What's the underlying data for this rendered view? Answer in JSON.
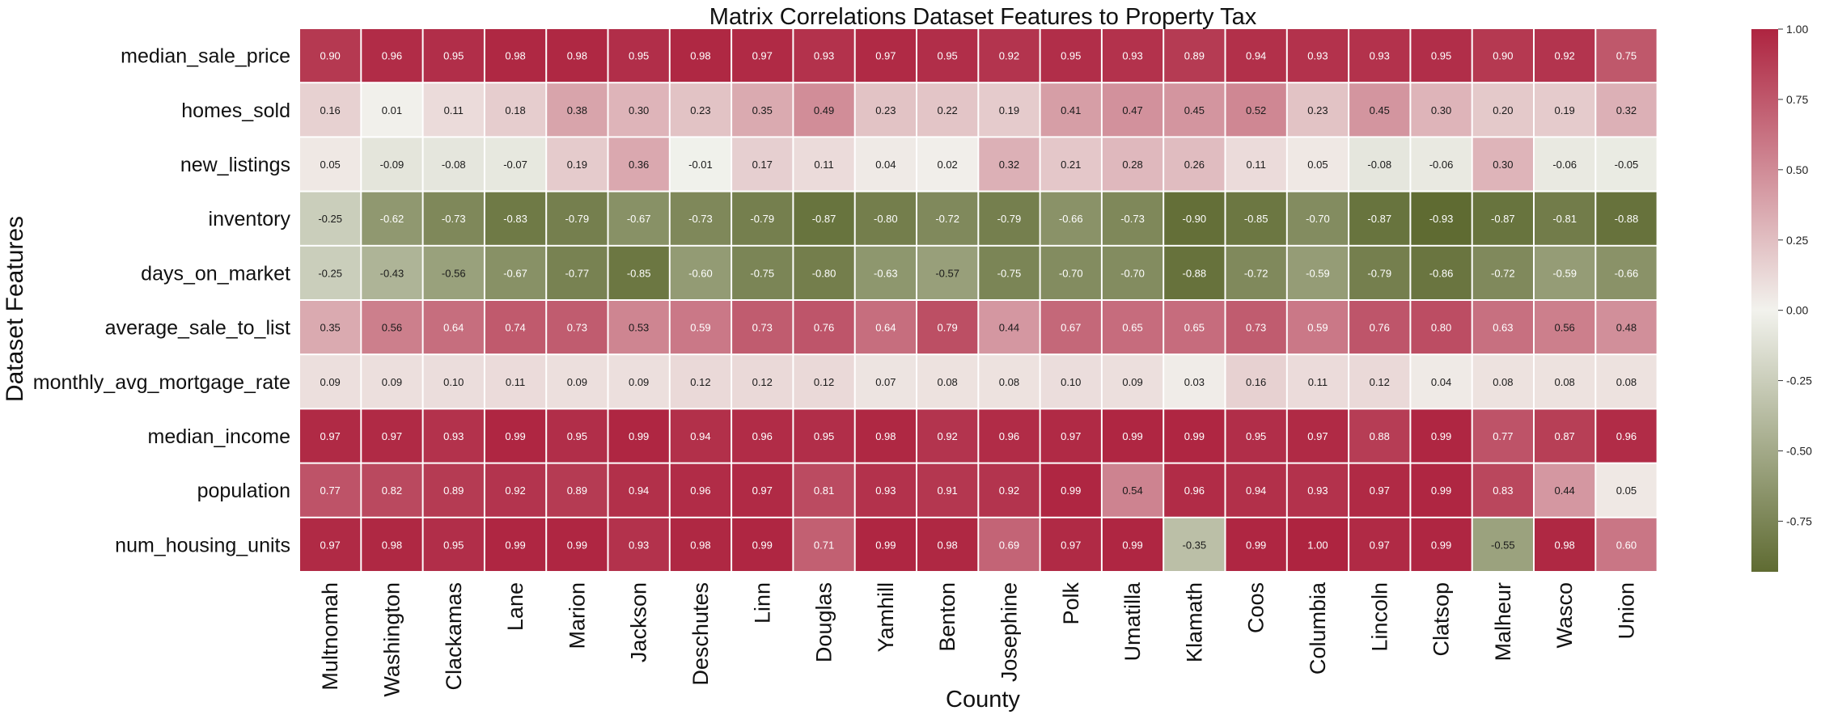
{
  "chart_data": {
    "type": "heatmap",
    "title": "Matrix Correlations Dataset Features to Property Tax",
    "xlabel": "County",
    "ylabel": "Dataset Features",
    "columns": [
      "Multnomah",
      "Washington",
      "Clackamas",
      "Lane",
      "Marion",
      "Jackson",
      "Deschutes",
      "Linn",
      "Douglas",
      "Yamhill",
      "Benton",
      "Josephine",
      "Polk",
      "Umatilla",
      "Klamath",
      "Coos",
      "Columbia",
      "Lincoln",
      "Clatsop",
      "Malheur",
      "Wasco",
      "Union"
    ],
    "rows": [
      "median_sale_price",
      "homes_sold",
      "new_listings",
      "inventory",
      "days_on_market",
      "average_sale_to_list",
      "monthly_avg_mortgage_rate",
      "median_income",
      "population",
      "num_housing_units"
    ],
    "values": [
      [
        0.9,
        0.96,
        0.95,
        0.98,
        0.98,
        0.95,
        0.98,
        0.97,
        0.93,
        0.97,
        0.95,
        0.92,
        0.95,
        0.93,
        0.89,
        0.94,
        0.93,
        0.93,
        0.95,
        0.9,
        0.92,
        0.75
      ],
      [
        0.16,
        0.01,
        0.11,
        0.18,
        0.38,
        0.3,
        0.23,
        0.35,
        0.49,
        0.23,
        0.22,
        0.19,
        0.41,
        0.47,
        0.45,
        0.52,
        0.23,
        0.45,
        0.3,
        0.2,
        0.19,
        0.32
      ],
      [
        0.05,
        -0.09,
        -0.08,
        -0.07,
        0.19,
        0.36,
        -0.01,
        0.17,
        0.11,
        0.04,
        0.02,
        0.32,
        0.21,
        0.28,
        0.26,
        0.11,
        0.05,
        -0.08,
        -0.06,
        0.3,
        -0.06,
        -0.05
      ],
      [
        -0.25,
        -0.62,
        -0.73,
        -0.83,
        -0.79,
        -0.67,
        -0.73,
        -0.79,
        -0.87,
        -0.8,
        -0.72,
        -0.79,
        -0.66,
        -0.73,
        -0.9,
        -0.85,
        -0.7,
        -0.87,
        -0.93,
        -0.87,
        -0.81,
        -0.88
      ],
      [
        -0.25,
        -0.43,
        -0.56,
        -0.67,
        -0.77,
        -0.85,
        -0.6,
        -0.75,
        -0.8,
        -0.63,
        -0.57,
        -0.75,
        -0.7,
        -0.7,
        -0.88,
        -0.72,
        -0.59,
        -0.79,
        -0.86,
        -0.72,
        -0.59,
        -0.66
      ],
      [
        0.35,
        0.56,
        0.64,
        0.74,
        0.73,
        0.53,
        0.59,
        0.73,
        0.76,
        0.64,
        0.79,
        0.44,
        0.67,
        0.65,
        0.65,
        0.73,
        0.59,
        0.76,
        0.8,
        0.63,
        0.56,
        0.48
      ],
      [
        0.09,
        0.09,
        0.1,
        0.11,
        0.09,
        0.09,
        0.12,
        0.12,
        0.12,
        0.07,
        0.08,
        0.08,
        0.1,
        0.09,
        0.03,
        0.16,
        0.11,
        0.12,
        0.04,
        0.08,
        0.08,
        0.08
      ],
      [
        0.97,
        0.97,
        0.93,
        0.99,
        0.95,
        0.99,
        0.94,
        0.96,
        0.95,
        0.98,
        0.92,
        0.96,
        0.97,
        0.99,
        0.99,
        0.95,
        0.97,
        0.88,
        0.99,
        0.77,
        0.87,
        0.96
      ],
      [
        0.77,
        0.82,
        0.89,
        0.92,
        0.89,
        0.94,
        0.96,
        0.97,
        0.81,
        0.93,
        0.91,
        0.92,
        0.99,
        0.54,
        0.96,
        0.94,
        0.93,
        0.97,
        0.99,
        0.83,
        0.44,
        0.05
      ],
      [
        0.97,
        0.98,
        0.95,
        0.99,
        0.99,
        0.93,
        0.98,
        0.99,
        0.71,
        0.99,
        0.98,
        0.69,
        0.97,
        0.99,
        -0.35,
        0.99,
        1.0,
        0.97,
        0.99,
        -0.55,
        0.98,
        0.6
      ]
    ],
    "colorbar": {
      "range": [
        -0.93,
        1.0
      ],
      "ticks": [
        "-0.75",
        "-0.50",
        "-0.25",
        "0.00",
        "0.25",
        "0.50",
        "0.75",
        "1.00"
      ],
      "tick_values": [
        -0.75,
        -0.5,
        -0.25,
        0,
        0.25,
        0.5,
        0.75,
        1.0
      ],
      "color_negative": "#5f6b32",
      "color_zero": "#f2f2ed",
      "color_positive": "#ae2440"
    },
    "grid": false,
    "legend": "right colorbar"
  }
}
